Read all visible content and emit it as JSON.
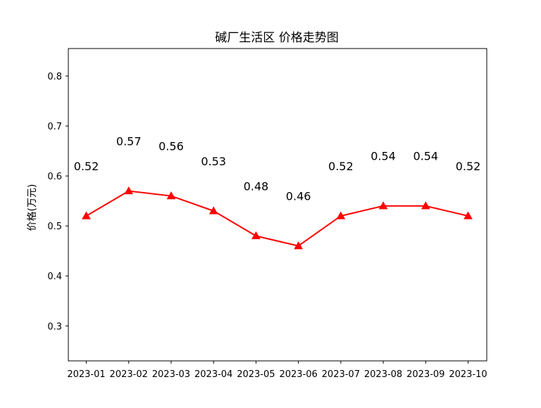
{
  "chart_data": {
    "type": "line",
    "title": "碱厂生活区 价格走势图",
    "xlabel": "",
    "ylabel": "价格(万元)",
    "categories": [
      "2023-01",
      "2023-02",
      "2023-03",
      "2023-04",
      "2023-05",
      "2023-06",
      "2023-07",
      "2023-08",
      "2023-09",
      "2023-10"
    ],
    "series": [
      {
        "values": [
          0.52,
          0.57,
          0.56,
          0.53,
          0.48,
          0.46,
          0.52,
          0.54,
          0.54,
          0.52
        ],
        "color": "#ff0000",
        "marker": "triangle-up"
      }
    ],
    "data_labels": [
      "0.52",
      "0.57",
      "0.56",
      "0.53",
      "0.48",
      "0.46",
      "0.52",
      "0.54",
      "0.54",
      "0.52"
    ],
    "y_ticks": [
      0.3,
      0.4,
      0.5,
      0.6,
      0.7,
      0.8
    ],
    "y_tick_labels": [
      "0.3",
      "0.4",
      "0.5",
      "0.6",
      "0.7",
      "0.8"
    ],
    "ylim": [
      0.23,
      0.855
    ],
    "grid": false,
    "legend": "none"
  }
}
